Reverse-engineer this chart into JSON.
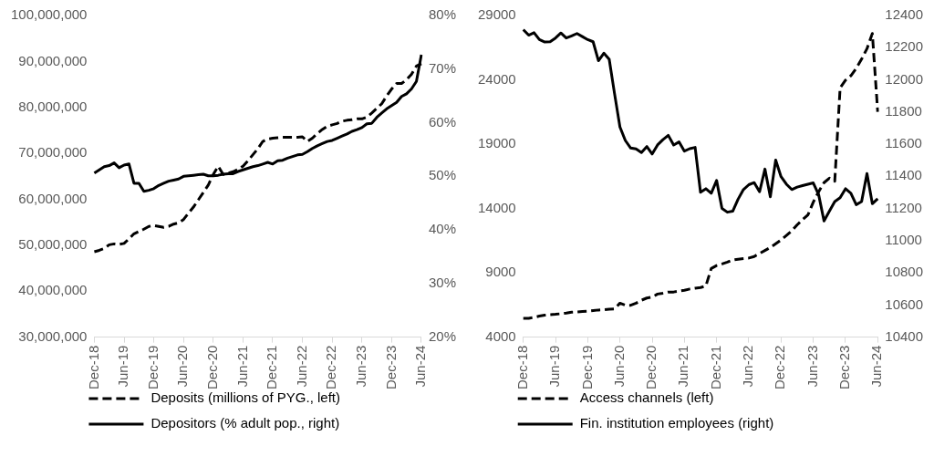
{
  "chart_data": [
    {
      "type": "line",
      "categories": [
        "Dec-18",
        null,
        null,
        null,
        null,
        null,
        "Jun-19",
        null,
        null,
        null,
        null,
        null,
        "Dec-19",
        null,
        null,
        null,
        null,
        null,
        "Jun-20",
        null,
        null,
        null,
        null,
        null,
        "Dec-20",
        null,
        null,
        null,
        null,
        null,
        "Jun-21",
        null,
        null,
        null,
        null,
        null,
        "Dec-21",
        null,
        null,
        null,
        null,
        null,
        "Jun-22",
        null,
        null,
        null,
        null,
        null,
        "Dec-22",
        null,
        null,
        null,
        null,
        null,
        "Jun-23",
        null,
        null,
        null,
        null,
        null,
        "Dec-23",
        null,
        null,
        null,
        null,
        null,
        "Jun-24"
      ],
      "series": [
        {
          "name": "Deposits (millions of PYG., left)",
          "color": "#000000",
          "line_style": "dashed",
          "axis": "y",
          "values": [
            48600000,
            48900000,
            49300000,
            50100000,
            50300000,
            50200000,
            50400000,
            51400000,
            52500000,
            53000000,
            53500000,
            54100000,
            54300000,
            54100000,
            53900000,
            54100000,
            54600000,
            54900000,
            55600000,
            57000000,
            58300000,
            59900000,
            61500000,
            63100000,
            65400000,
            67200000,
            65400000,
            65700000,
            66000000,
            66500000,
            67200000,
            68400000,
            69700000,
            71000000,
            72600000,
            73100000,
            73300000,
            73400000,
            73500000,
            73500000,
            73500000,
            73500000,
            73600000,
            72600000,
            73300000,
            74300000,
            75200000,
            75900000,
            76200000,
            76500000,
            77000000,
            77200000,
            77300000,
            77500000,
            77500000,
            77900000,
            78800000,
            79800000,
            80800000,
            82500000,
            84000000,
            85200000,
            85200000,
            86000000,
            87200000,
            89000000,
            89500000
          ]
        },
        {
          "name": "Depositors (% adult pop., right)",
          "color": "#000000",
          "line_style": "solid",
          "axis": "y2",
          "values": [
            50.6,
            51.2,
            51.8,
            52.0,
            52.5,
            51.6,
            52.1,
            52.3,
            48.7,
            48.7,
            47.2,
            47.4,
            47.7,
            48.3,
            48.7,
            49.1,
            49.3,
            49.5,
            50.0,
            50.1,
            50.2,
            50.3,
            50.4,
            50.1,
            50.1,
            50.2,
            50.4,
            50.5,
            50.5,
            50.9,
            51.2,
            51.5,
            51.8,
            52.0,
            52.3,
            52.6,
            52.3,
            52.9,
            53.0,
            53.4,
            53.7,
            54.0,
            54.1,
            54.6,
            55.2,
            55.7,
            56.1,
            56.5,
            56.7,
            57.1,
            57.5,
            57.9,
            58.4,
            58.7,
            59.1,
            59.8,
            59.9,
            61.0,
            61.8,
            62.6,
            63.2,
            63.8,
            64.9,
            65.4,
            66.3,
            67.7,
            72.7
          ]
        }
      ],
      "ylim": [
        30000000,
        100000000
      ],
      "yticks": [
        {
          "value": 30000000,
          "label": "30,000,000"
        },
        {
          "value": 40000000,
          "label": "40,000,000"
        },
        {
          "value": 50000000,
          "label": "50,000,000"
        },
        {
          "value": 60000000,
          "label": "60,000,000"
        },
        {
          "value": 70000000,
          "label": "70,000,000"
        },
        {
          "value": 80000000,
          "label": "80,000,000"
        },
        {
          "value": 90000000,
          "label": "90,000,000"
        },
        {
          "value": 100000000,
          "label": "100,000,000"
        }
      ],
      "y2lim": [
        20,
        80
      ],
      "y2ticks": [
        {
          "value": 20,
          "label": "20%"
        },
        {
          "value": 30,
          "label": "30%"
        },
        {
          "value": 40,
          "label": "40%"
        },
        {
          "value": 50,
          "label": "50%"
        },
        {
          "value": 60,
          "label": "60%"
        },
        {
          "value": 70,
          "label": "70%"
        },
        {
          "value": 80,
          "label": "80%"
        }
      ],
      "legend": "bottom",
      "marker": "none"
    },
    {
      "type": "line",
      "categories": [
        "Dec-18",
        null,
        null,
        null,
        null,
        null,
        "Jun-19",
        null,
        null,
        null,
        null,
        null,
        "Dec-19",
        null,
        null,
        null,
        null,
        null,
        "Jun-20",
        null,
        null,
        null,
        null,
        null,
        "Dec-20",
        null,
        null,
        null,
        null,
        null,
        "Jun-21",
        null,
        null,
        null,
        null,
        null,
        "Dec-21",
        null,
        null,
        null,
        null,
        null,
        "Jun-22",
        null,
        null,
        null,
        null,
        null,
        "Dec-22",
        null,
        null,
        null,
        null,
        null,
        "Jun-23",
        null,
        null,
        null,
        null,
        null,
        "Dec-23",
        null,
        null,
        null,
        null,
        null,
        "Jun-24"
      ],
      "series": [
        {
          "name": "Access channels (left)",
          "color": "#000000",
          "line_style": "dashed",
          "axis": "y",
          "values": [
            5470,
            5470,
            5540,
            5640,
            5710,
            5750,
            5780,
            5820,
            5870,
            5940,
            5960,
            5990,
            6010,
            6060,
            6110,
            6130,
            6180,
            6200,
            6640,
            6480,
            6480,
            6640,
            6870,
            7040,
            7110,
            7350,
            7420,
            7510,
            7510,
            7580,
            7650,
            7740,
            7810,
            7860,
            7980,
            9340,
            9570,
            9690,
            9830,
            9990,
            10060,
            10110,
            10150,
            10270,
            10510,
            10740,
            10970,
            11260,
            11560,
            11910,
            12260,
            12730,
            13130,
            13500,
            14490,
            15300,
            16010,
            16360,
            16120,
            23380,
            23970,
            24320,
            24900,
            25610,
            26420,
            27600,
            21510
          ]
        },
        {
          "name": "Fin. institution employees (right)",
          "color": "#000000",
          "line_style": "solid",
          "axis": "y2",
          "values": [
            12312,
            12278,
            12293,
            12250,
            12235,
            12237,
            12260,
            12291,
            12260,
            12273,
            12288,
            12269,
            12250,
            12237,
            12119,
            12166,
            12128,
            11913,
            11707,
            11623,
            11576,
            11570,
            11548,
            11585,
            11539,
            11595,
            11628,
            11655,
            11595,
            11614,
            11557,
            11572,
            11580,
            11301,
            11323,
            11295,
            11374,
            11201,
            11177,
            11183,
            11258,
            11318,
            11348,
            11361,
            11304,
            11445,
            11273,
            11501,
            11398,
            11351,
            11318,
            11333,
            11342,
            11351,
            11359,
            11286,
            11123,
            11183,
            11243,
            11267,
            11323,
            11295,
            11224,
            11243,
            11417,
            11230,
            11261
          ]
        }
      ],
      "ylim": [
        4000,
        29000
      ],
      "yticks": [
        4000,
        9000,
        14000,
        19000,
        24000,
        29000
      ],
      "y2lim": [
        10400,
        12400
      ],
      "y2ticks": [
        10400,
        10600,
        10800,
        11000,
        11200,
        11400,
        11600,
        11800,
        12000,
        12200,
        12400
      ],
      "legend": "bottom",
      "marker": "none"
    }
  ]
}
